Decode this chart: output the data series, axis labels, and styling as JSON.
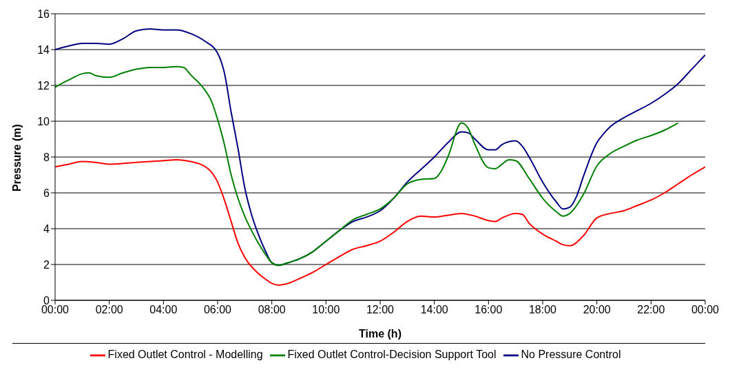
{
  "chart_data": {
    "type": "line",
    "xlabel": "Time (h)",
    "ylabel": "Pressure (m)",
    "xlim": [
      0,
      24
    ],
    "ylim": [
      0,
      16
    ],
    "yticks": [
      0,
      2,
      4,
      6,
      8,
      10,
      12,
      14,
      16
    ],
    "xticks": [
      {
        "value": 0,
        "label": "00:00"
      },
      {
        "value": 2,
        "label": "02:00"
      },
      {
        "value": 4,
        "label": "04:00"
      },
      {
        "value": 6,
        "label": "06:00"
      },
      {
        "value": 8,
        "label": "08:00"
      },
      {
        "value": 10,
        "label": "10:00"
      },
      {
        "value": 12,
        "label": "12:00"
      },
      {
        "value": 14,
        "label": "14:00"
      },
      {
        "value": 16,
        "label": "16:00"
      },
      {
        "value": 18,
        "label": "18:00"
      },
      {
        "value": 20,
        "label": "20:00"
      },
      {
        "value": 22,
        "label": "22:00"
      },
      {
        "value": 24,
        "label": "00:00"
      }
    ],
    "grid": "y",
    "legend": "bottom",
    "marker": "none",
    "line_style": "solid",
    "series": [
      {
        "name": "No Pressure Control",
        "color": "#000080",
        "x": [
          0,
          0.5,
          1,
          1.5,
          2,
          2.5,
          3,
          3.5,
          4,
          4.5,
          5,
          5.5,
          6,
          6.25,
          6.5,
          6.75,
          7,
          7.25,
          7.5,
          7.75,
          8,
          8.25,
          8.5,
          9,
          9.5,
          10,
          10.5,
          11,
          11.5,
          12,
          12.5,
          13,
          13.5,
          14,
          14.5,
          15,
          15.25,
          15.5,
          16,
          16.25,
          16.5,
          17,
          17.25,
          17.5,
          18,
          18.5,
          18.75,
          19,
          19.25,
          19.5,
          20,
          20.25,
          20.5,
          21,
          21.5,
          22,
          22.5,
          23,
          23.5,
          24
        ],
        "values": [
          14.0,
          14.2,
          14.35,
          14.35,
          14.3,
          14.6,
          15.05,
          15.15,
          15.1,
          15.1,
          14.9,
          14.5,
          13.8,
          12.7,
          10.5,
          8.5,
          6.3,
          4.8,
          3.7,
          2.8,
          2.1,
          1.95,
          2.05,
          2.3,
          2.7,
          3.3,
          3.9,
          4.4,
          4.65,
          5.0,
          5.7,
          6.6,
          7.3,
          8.0,
          8.8,
          9.4,
          9.35,
          9.0,
          8.4,
          8.4,
          8.7,
          8.9,
          8.6,
          8.0,
          6.6,
          5.5,
          5.1,
          5.2,
          5.8,
          6.9,
          8.8,
          9.3,
          9.7,
          10.2,
          10.6,
          11.0,
          11.5,
          12.1,
          12.9,
          13.7
        ]
      },
      {
        "name": "Fixed Outlet Control - Modelling",
        "color": "#ff0000",
        "x": [
          0,
          0.5,
          1,
          1.5,
          2,
          3,
          4,
          4.5,
          5,
          5.5,
          5.75,
          6,
          6.25,
          6.5,
          6.75,
          7,
          7.5,
          7.75,
          8,
          8.25,
          8.5,
          9,
          9.5,
          10,
          10.5,
          11,
          11.5,
          12,
          12.5,
          13,
          13.5,
          14,
          14.5,
          15,
          15.5,
          16,
          16.25,
          16.5,
          17,
          17.25,
          17.5,
          18,
          18.5,
          18.75,
          19,
          19.5,
          20,
          20.5,
          21,
          21.5,
          22,
          22.5,
          23,
          23.5,
          24
        ],
        "values": [
          7.45,
          7.6,
          7.75,
          7.7,
          7.6,
          7.7,
          7.8,
          7.85,
          7.75,
          7.5,
          7.2,
          6.6,
          5.6,
          4.4,
          3.2,
          2.4,
          1.5,
          1.2,
          0.95,
          0.85,
          0.9,
          1.2,
          1.55,
          2.0,
          2.45,
          2.85,
          3.05,
          3.3,
          3.8,
          4.4,
          4.7,
          4.65,
          4.75,
          4.85,
          4.7,
          4.45,
          4.4,
          4.6,
          4.85,
          4.8,
          4.3,
          3.7,
          3.3,
          3.1,
          3.05,
          3.6,
          4.6,
          4.85,
          5.0,
          5.3,
          5.6,
          6.0,
          6.5,
          7.0,
          7.45
        ]
      },
      {
        "name": "Fixed Outlet Control-Decision Support Tool",
        "color": "#008000",
        "x": [
          0,
          0.5,
          1,
          1.25,
          1.5,
          2,
          2.5,
          3,
          3.5,
          4,
          4.5,
          4.75,
          5,
          5.5,
          5.75,
          6,
          6.25,
          6.5,
          6.75,
          7,
          7.25,
          7.5,
          7.75,
          8,
          8.25,
          8.5,
          9,
          9.5,
          10,
          10.5,
          11,
          11.5,
          12,
          12.5,
          13,
          13.5,
          14,
          14.25,
          14.5,
          15,
          15.25,
          15.5,
          16,
          16.25,
          16.5,
          16.75,
          17,
          17.5,
          18,
          18.5,
          18.75,
          19,
          19.5,
          20,
          20.5,
          21,
          21.5,
          22,
          22.5,
          23
        ],
        "values": [
          11.9,
          12.3,
          12.65,
          12.7,
          12.55,
          12.45,
          12.7,
          12.9,
          13.0,
          13.0,
          13.05,
          13.0,
          12.6,
          11.8,
          11.2,
          10.1,
          8.7,
          7.0,
          5.7,
          4.7,
          3.9,
          3.2,
          2.6,
          2.1,
          1.95,
          2.05,
          2.3,
          2.7,
          3.3,
          3.9,
          4.5,
          4.8,
          5.1,
          5.7,
          6.5,
          6.75,
          6.8,
          7.2,
          8.0,
          9.9,
          9.6,
          8.7,
          7.4,
          7.35,
          7.6,
          7.85,
          7.8,
          6.8,
          5.7,
          4.95,
          4.7,
          4.85,
          5.9,
          7.5,
          8.2,
          8.6,
          8.95,
          9.2,
          9.5,
          9.9
        ]
      }
    ]
  }
}
